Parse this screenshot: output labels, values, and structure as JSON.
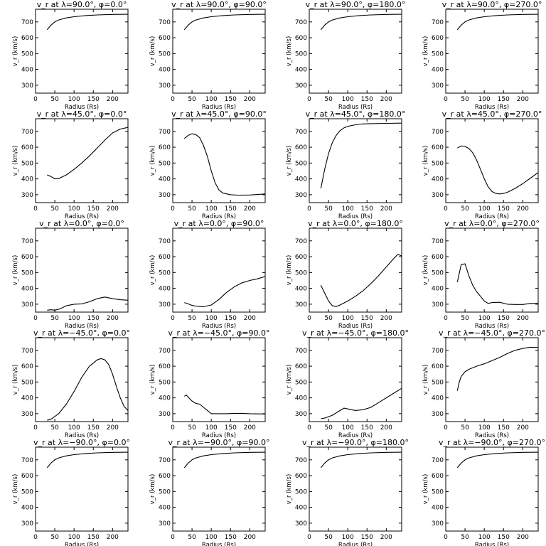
{
  "figure": {
    "ylabel": "v_r (km/s)",
    "xlabel": "Radius (Rs)"
  },
  "chart_data": [
    {
      "type": "line",
      "title": "v_r at λ=90.0°, φ=0.0°",
      "xlabel": "Radius (Rs)",
      "ylabel": "v_r (km/s)",
      "xlim": [
        0,
        240
      ],
      "ylim": [
        250,
        780
      ],
      "xticks": [
        0,
        50,
        100,
        150,
        200
      ],
      "yticks": [
        300,
        400,
        500,
        600,
        700
      ],
      "x": [
        30,
        40,
        50,
        60,
        80,
        100,
        130,
        160,
        200,
        240
      ],
      "y": [
        650,
        680,
        700,
        712,
        725,
        733,
        740,
        744,
        747,
        748
      ]
    },
    {
      "type": "line",
      "title": "v_r at λ=90.0°, φ=90.0°",
      "xlabel": "Radius (Rs)",
      "ylabel": "v_r (km/s)",
      "xlim": [
        0,
        240
      ],
      "ylim": [
        250,
        780
      ],
      "xticks": [
        0,
        50,
        100,
        150,
        200
      ],
      "yticks": [
        300,
        400,
        500,
        600,
        700
      ],
      "x": [
        30,
        40,
        50,
        60,
        80,
        100,
        130,
        160,
        200,
        240
      ],
      "y": [
        650,
        680,
        700,
        712,
        725,
        733,
        740,
        744,
        747,
        748
      ]
    },
    {
      "type": "line",
      "title": "v_r at λ=90.0°, φ=180.0°",
      "xlabel": "Radius (Rs)",
      "ylabel": "v_r (km/s)",
      "xlim": [
        0,
        240
      ],
      "ylim": [
        250,
        780
      ],
      "xticks": [
        0,
        50,
        100,
        150,
        200
      ],
      "yticks": [
        300,
        400,
        500,
        600,
        700
      ],
      "x": [
        30,
        40,
        50,
        60,
        80,
        100,
        130,
        160,
        200,
        240
      ],
      "y": [
        650,
        680,
        700,
        712,
        725,
        733,
        740,
        744,
        747,
        748
      ]
    },
    {
      "type": "line",
      "title": "v_r at λ=90.0°, φ=270.0°",
      "xlabel": "Radius (Rs)",
      "ylabel": "v_r (km/s)",
      "xlim": [
        0,
        240
      ],
      "ylim": [
        250,
        780
      ],
      "xticks": [
        0,
        50,
        100,
        150,
        200
      ],
      "yticks": [
        300,
        400,
        500,
        600,
        700
      ],
      "x": [
        30,
        40,
        50,
        60,
        80,
        100,
        130,
        160,
        200,
        240
      ],
      "y": [
        650,
        680,
        700,
        712,
        725,
        733,
        740,
        744,
        747,
        748
      ]
    },
    {
      "type": "line",
      "title": "v_r at λ=45.0°, φ=0.0°",
      "xlabel": "Radius (Rs)",
      "ylabel": "v_r (km/s)",
      "xlim": [
        0,
        240
      ],
      "ylim": [
        250,
        780
      ],
      "xticks": [
        0,
        50,
        100,
        150,
        200
      ],
      "yticks": [
        300,
        400,
        500,
        600,
        700
      ],
      "x": [
        30,
        40,
        50,
        60,
        80,
        100,
        120,
        140,
        160,
        180,
        200,
        220,
        240
      ],
      "y": [
        425,
        415,
        400,
        402,
        425,
        460,
        500,
        545,
        595,
        645,
        690,
        715,
        725
      ]
    },
    {
      "type": "line",
      "title": "v_r at λ=45.0°, φ=90.0°",
      "xlabel": "Radius (Rs)",
      "ylabel": "v_r (km/s)",
      "xlim": [
        0,
        240
      ],
      "ylim": [
        250,
        780
      ],
      "xticks": [
        0,
        50,
        100,
        150,
        200
      ],
      "yticks": [
        300,
        400,
        500,
        600,
        700
      ],
      "x": [
        30,
        40,
        50,
        60,
        70,
        80,
        90,
        100,
        110,
        120,
        130,
        150,
        170,
        200,
        240
      ],
      "y": [
        655,
        675,
        685,
        680,
        660,
        610,
        540,
        450,
        375,
        330,
        310,
        300,
        297,
        298,
        305
      ]
    },
    {
      "type": "line",
      "title": "v_r at λ=45.0°, φ=180.0°",
      "xlabel": "Radius (Rs)",
      "ylabel": "v_r (km/s)",
      "xlim": [
        0,
        240
      ],
      "ylim": [
        250,
        780
      ],
      "xticks": [
        0,
        50,
        100,
        150,
        200
      ],
      "yticks": [
        300,
        400,
        500,
        600,
        700
      ],
      "x": [
        30,
        40,
        50,
        60,
        70,
        80,
        90,
        100,
        120,
        140,
        160,
        200,
        240
      ],
      "y": [
        340,
        460,
        560,
        630,
        675,
        705,
        722,
        732,
        742,
        747,
        749,
        751,
        752
      ]
    },
    {
      "type": "line",
      "title": "v_r at λ=45.0°, φ=270.0°",
      "xlabel": "Radius (Rs)",
      "ylabel": "v_r (km/s)",
      "xlim": [
        0,
        240
      ],
      "ylim": [
        250,
        780
      ],
      "xticks": [
        0,
        50,
        100,
        150,
        200
      ],
      "yticks": [
        300,
        400,
        500,
        600,
        700
      ],
      "x": [
        30,
        40,
        50,
        60,
        70,
        80,
        90,
        100,
        110,
        120,
        130,
        140,
        150,
        160,
        180,
        200,
        220,
        240
      ],
      "y": [
        595,
        608,
        605,
        592,
        565,
        520,
        460,
        400,
        350,
        320,
        308,
        305,
        308,
        315,
        340,
        370,
        405,
        440
      ]
    },
    {
      "type": "line",
      "title": "v_r at λ=0.0°, φ=0.0°",
      "xlabel": "Radius (Rs)",
      "ylabel": "v_r (km/s)",
      "xlim": [
        0,
        240
      ],
      "ylim": [
        250,
        780
      ],
      "xticks": [
        0,
        50,
        100,
        150,
        200
      ],
      "yticks": [
        300,
        400,
        500,
        600,
        700
      ],
      "x": [
        30,
        40,
        50,
        60,
        70,
        80,
        100,
        120,
        140,
        160,
        180,
        200,
        220,
        240
      ],
      "y": [
        262,
        265,
        262,
        268,
        278,
        290,
        300,
        302,
        315,
        335,
        345,
        335,
        328,
        325
      ]
    },
    {
      "type": "line",
      "title": "v_r at λ=0.0°, φ=90.0°",
      "xlabel": "Radius (Rs)",
      "ylabel": "v_r (km/s)",
      "xlim": [
        0,
        240
      ],
      "ylim": [
        250,
        780
      ],
      "xticks": [
        0,
        50,
        100,
        150,
        200
      ],
      "yticks": [
        300,
        400,
        500,
        600,
        700
      ],
      "x": [
        30,
        40,
        50,
        60,
        70,
        80,
        100,
        120,
        140,
        160,
        180,
        200,
        220,
        240
      ],
      "y": [
        310,
        302,
        292,
        288,
        285,
        284,
        295,
        330,
        375,
        410,
        435,
        450,
        460,
        475
      ]
    },
    {
      "type": "line",
      "title": "v_r at λ=0.0°, φ=180.0°",
      "xlabel": "Radius (Rs)",
      "ylabel": "v_r (km/s)",
      "xlim": [
        0,
        240
      ],
      "ylim": [
        250,
        780
      ],
      "xticks": [
        0,
        50,
        100,
        150,
        200
      ],
      "yticks": [
        300,
        400,
        500,
        600,
        700
      ],
      "x": [
        30,
        40,
        50,
        60,
        70,
        80,
        100,
        120,
        140,
        160,
        180,
        200,
        220,
        230,
        240
      ],
      "y": [
        420,
        370,
        320,
        290,
        285,
        295,
        320,
        350,
        385,
        430,
        480,
        535,
        590,
        615,
        605
      ]
    },
    {
      "type": "line",
      "title": "v_r at λ=0.0°, φ=270.0°",
      "xlabel": "Radius (Rs)",
      "ylabel": "v_r (km/s)",
      "xlim": [
        0,
        240
      ],
      "ylim": [
        250,
        780
      ],
      "xticks": [
        0,
        50,
        100,
        150,
        200
      ],
      "yticks": [
        300,
        400,
        500,
        600,
        700
      ],
      "x": [
        30,
        40,
        50,
        60,
        70,
        80,
        90,
        100,
        110,
        120,
        140,
        160,
        180,
        200,
        220,
        240
      ],
      "y": [
        440,
        550,
        555,
        480,
        420,
        380,
        350,
        320,
        305,
        310,
        312,
        300,
        298,
        298,
        305,
        305
      ]
    },
    {
      "type": "line",
      "title": "v_r at λ=−45.0°, φ=0.0°",
      "xlabel": "Radius (Rs)",
      "ylabel": "v_r (km/s)",
      "xlim": [
        0,
        240
      ],
      "ylim": [
        250,
        780
      ],
      "xticks": [
        0,
        50,
        100,
        150,
        200
      ],
      "yticks": [
        300,
        400,
        500,
        600,
        700
      ],
      "x": [
        30,
        40,
        60,
        80,
        100,
        120,
        140,
        160,
        170,
        180,
        190,
        200,
        210,
        220,
        230,
        240
      ],
      "y": [
        258,
        265,
        300,
        360,
        440,
        530,
        600,
        640,
        648,
        640,
        610,
        550,
        470,
        400,
        345,
        320
      ]
    },
    {
      "type": "line",
      "title": "v_r at λ=−45.0°, φ=90.0°",
      "xlabel": "Radius (Rs)",
      "ylabel": "v_r (km/s)",
      "xlim": [
        0,
        240
      ],
      "ylim": [
        250,
        780
      ],
      "xticks": [
        0,
        50,
        100,
        150,
        200
      ],
      "yticks": [
        300,
        400,
        500,
        600,
        700
      ],
      "x": [
        30,
        35,
        40,
        50,
        60,
        70,
        80,
        90,
        100,
        120,
        140,
        160,
        180,
        200,
        240
      ],
      "y": [
        410,
        418,
        405,
        380,
        365,
        360,
        340,
        320,
        300,
        300,
        300,
        302,
        302,
        300,
        298
      ]
    },
    {
      "type": "line",
      "title": "v_r at λ=−45.0°, φ=180.0°",
      "xlabel": "Radius (Rs)",
      "ylabel": "v_r (km/s)",
      "xlim": [
        0,
        240
      ],
      "ylim": [
        250,
        780
      ],
      "xticks": [
        0,
        50,
        100,
        150,
        200
      ],
      "yticks": [
        300,
        400,
        500,
        600,
        700
      ],
      "x": [
        30,
        40,
        60,
        80,
        90,
        100,
        120,
        140,
        160,
        180,
        200,
        220,
        240
      ],
      "y": [
        268,
        272,
        290,
        320,
        335,
        330,
        320,
        325,
        340,
        370,
        400,
        430,
        460
      ]
    },
    {
      "type": "line",
      "title": "v_r at λ=−45.0°, φ=270.0°",
      "xlabel": "Radius (Rs)",
      "ylabel": "v_r (km/s)",
      "xlim": [
        0,
        240
      ],
      "ylim": [
        250,
        780
      ],
      "xticks": [
        0,
        50,
        100,
        150,
        200
      ],
      "yticks": [
        300,
        400,
        500,
        600,
        700
      ],
      "x": [
        30,
        35,
        40,
        50,
        60,
        80,
        100,
        120,
        140,
        160,
        180,
        200,
        220,
        240
      ],
      "y": [
        445,
        500,
        535,
        565,
        580,
        600,
        615,
        635,
        655,
        680,
        700,
        712,
        720,
        718
      ]
    },
    {
      "type": "line",
      "title": "v_r at λ=−90.0°, φ=0.0°",
      "xlabel": "Radius (Rs)",
      "ylabel": "v_r (km/s)",
      "xlim": [
        0,
        240
      ],
      "ylim": [
        250,
        780
      ],
      "xticks": [
        0,
        50,
        100,
        150,
        200
      ],
      "yticks": [
        300,
        400,
        500,
        600,
        700
      ],
      "x": [
        30,
        40,
        50,
        60,
        80,
        100,
        130,
        160,
        200,
        240
      ],
      "y": [
        650,
        680,
        700,
        712,
        725,
        733,
        740,
        744,
        747,
        748
      ]
    },
    {
      "type": "line",
      "title": "v_r at λ=−90.0°, φ=90.0°",
      "xlabel": "Radius (Rs)",
      "ylabel": "v_r (km/s)",
      "xlim": [
        0,
        240
      ],
      "ylim": [
        250,
        780
      ],
      "xticks": [
        0,
        50,
        100,
        150,
        200
      ],
      "yticks": [
        300,
        400,
        500,
        600,
        700
      ],
      "x": [
        30,
        40,
        50,
        60,
        80,
        100,
        130,
        160,
        200,
        240
      ],
      "y": [
        650,
        680,
        700,
        712,
        725,
        733,
        740,
        744,
        747,
        748
      ]
    },
    {
      "type": "line",
      "title": "v_r at λ=−90.0°, φ=180.0°",
      "xlabel": "Radius (Rs)",
      "ylabel": "v_r (km/s)",
      "xlim": [
        0,
        240
      ],
      "ylim": [
        250,
        780
      ],
      "xticks": [
        0,
        50,
        100,
        150,
        200
      ],
      "yticks": [
        300,
        400,
        500,
        600,
        700
      ],
      "x": [
        30,
        40,
        50,
        60,
        80,
        100,
        130,
        160,
        200,
        240
      ],
      "y": [
        650,
        680,
        700,
        712,
        725,
        733,
        740,
        744,
        747,
        748
      ]
    },
    {
      "type": "line",
      "title": "v_r at λ=−90.0°, φ=270.0°",
      "xlabel": "Radius (Rs)",
      "ylabel": "v_r (km/s)",
      "xlim": [
        0,
        240
      ],
      "ylim": [
        250,
        780
      ],
      "xticks": [
        0,
        50,
        100,
        150,
        200
      ],
      "yticks": [
        300,
        400,
        500,
        600,
        700
      ],
      "x": [
        30,
        40,
        50,
        60,
        80,
        100,
        130,
        160,
        200,
        240
      ],
      "y": [
        650,
        680,
        700,
        712,
        725,
        733,
        740,
        744,
        747,
        748
      ]
    }
  ]
}
